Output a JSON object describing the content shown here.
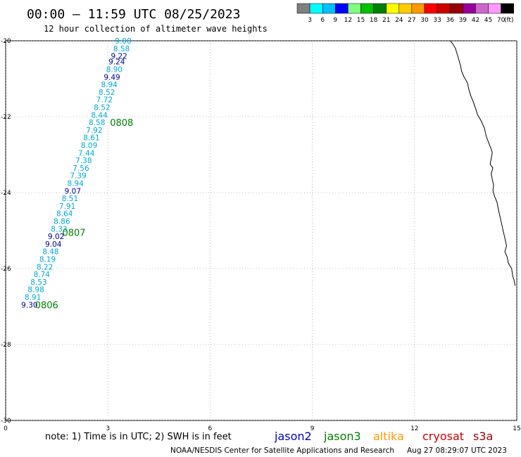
{
  "header": {
    "title": "00:00 – 11:59 UTC 08/25/2023",
    "subtitle": "12 hour collection of altimeter wave heights"
  },
  "legend": {
    "ticks": [
      "3",
      "6",
      "9",
      "12",
      "15",
      "18",
      "21",
      "24",
      "27",
      "30",
      "33",
      "36",
      "39",
      "42",
      "45",
      "70"
    ],
    "unit": "(ft)",
    "colors": [
      "#808080",
      "#00ffff",
      "#00bfff",
      "#0000ff",
      "#7fff7f",
      "#00c000",
      "#008000",
      "#ffff00",
      "#ffcc00",
      "#ff9900",
      "#ff0000",
      "#cc0000",
      "#990000",
      "#990099",
      "#cc66cc",
      "#ff99ff",
      "#000000"
    ]
  },
  "footer": {
    "note": "note: 1) Time is in UTC; 2) SWH is in feet",
    "credit": "NOAA/NESDIS Center for Satellite Applications and Research",
    "generated": "Aug 27 08:29:07 UTC 2023",
    "satellites": [
      {
        "name": "jason2",
        "color": "#0000cc"
      },
      {
        "name": "jason3",
        "color": "#008000"
      },
      {
        "name": "altika",
        "color": "#ff9900"
      },
      {
        "name": "cryosat",
        "color": "#cc0000"
      },
      {
        "name": "s3a",
        "color": "#990000"
      }
    ]
  },
  "chart_data": {
    "type": "scatter",
    "xlim": [
      0,
      15
    ],
    "ylim": [
      -30,
      -20
    ],
    "x_ticks": [
      "0",
      "3",
      "6",
      "9",
      "12",
      "15"
    ],
    "y_ticks": [
      "-20",
      "-22",
      "-24",
      "-26",
      "-28",
      "-30"
    ],
    "grid": true,
    "colors": {
      "light": "#00a8d8",
      "dark": "#00008b",
      "pass": "#008000"
    },
    "points": [
      {
        "x": 3.45,
        "y": -20.0,
        "value": "9.00",
        "shade": "light"
      },
      {
        "x": 3.4,
        "y": -20.2,
        "value": "8.58",
        "shade": "light"
      },
      {
        "x": 3.33,
        "y": -20.4,
        "value": "9.22",
        "shade": "dark"
      },
      {
        "x": 3.26,
        "y": -20.55,
        "value": "9.24",
        "shade": "dark"
      },
      {
        "x": 3.19,
        "y": -20.75,
        "value": "8.90",
        "shade": "light"
      },
      {
        "x": 3.12,
        "y": -20.95,
        "value": "9.49",
        "shade": "dark"
      },
      {
        "x": 3.04,
        "y": -21.15,
        "value": "8.94",
        "shade": "light"
      },
      {
        "x": 2.97,
        "y": -21.35,
        "value": "8.52",
        "shade": "light"
      },
      {
        "x": 2.9,
        "y": -21.55,
        "value": "7.72",
        "shade": "light"
      },
      {
        "x": 2.83,
        "y": -21.75,
        "value": "8.52",
        "shade": "light"
      },
      {
        "x": 2.75,
        "y": -21.95,
        "value": "8.44",
        "shade": "light"
      },
      {
        "x": 2.68,
        "y": -22.15,
        "value": "8.58",
        "shade": "light"
      },
      {
        "x": 2.6,
        "y": -22.35,
        "value": "7.92",
        "shade": "light"
      },
      {
        "x": 2.52,
        "y": -22.55,
        "value": "8.61",
        "shade": "light"
      },
      {
        "x": 2.45,
        "y": -22.75,
        "value": "8.09",
        "shade": "light"
      },
      {
        "x": 2.37,
        "y": -22.95,
        "value": "7.44",
        "shade": "light"
      },
      {
        "x": 2.29,
        "y": -23.15,
        "value": "7.38",
        "shade": "light"
      },
      {
        "x": 2.21,
        "y": -23.35,
        "value": "7.56",
        "shade": "light"
      },
      {
        "x": 2.13,
        "y": -23.55,
        "value": "7.39",
        "shade": "light"
      },
      {
        "x": 2.05,
        "y": -23.75,
        "value": "8.94",
        "shade": "light"
      },
      {
        "x": 1.97,
        "y": -23.95,
        "value": "9.07",
        "shade": "dark"
      },
      {
        "x": 1.89,
        "y": -24.15,
        "value": "8.51",
        "shade": "light"
      },
      {
        "x": 1.81,
        "y": -24.35,
        "value": "7.91",
        "shade": "light"
      },
      {
        "x": 1.73,
        "y": -24.55,
        "value": "8.64",
        "shade": "light"
      },
      {
        "x": 1.65,
        "y": -24.75,
        "value": "8.86",
        "shade": "light"
      },
      {
        "x": 1.57,
        "y": -24.95,
        "value": "8.33",
        "shade": "light"
      },
      {
        "x": 1.48,
        "y": -25.15,
        "value": "9.02",
        "shade": "dark"
      },
      {
        "x": 1.4,
        "y": -25.35,
        "value": "9.04",
        "shade": "dark"
      },
      {
        "x": 1.32,
        "y": -25.55,
        "value": "8.48",
        "shade": "light"
      },
      {
        "x": 1.23,
        "y": -25.75,
        "value": "8.19",
        "shade": "light"
      },
      {
        "x": 1.15,
        "y": -25.95,
        "value": "8.22",
        "shade": "light"
      },
      {
        "x": 1.06,
        "y": -26.15,
        "value": "8.74",
        "shade": "light"
      },
      {
        "x": 0.97,
        "y": -26.35,
        "value": "8.53",
        "shade": "light"
      },
      {
        "x": 0.89,
        "y": -26.55,
        "value": "8.98",
        "shade": "light"
      },
      {
        "x": 0.8,
        "y": -26.75,
        "value": "8.91",
        "shade": "light"
      },
      {
        "x": 0.7,
        "y": -26.95,
        "value": "9.30",
        "shade": "dark"
      }
    ],
    "pass_labels": [
      {
        "text": "0808",
        "x": 3.0,
        "y": -22.15
      },
      {
        "text": "0807",
        "x": 1.6,
        "y": -25.05
      },
      {
        "text": "0806",
        "x": 0.8,
        "y": -26.95
      }
    ],
    "coastline": [
      [
        13.05,
        -20.0
      ],
      [
        13.12,
        -20.08
      ],
      [
        13.2,
        -20.2
      ],
      [
        13.25,
        -20.35
      ],
      [
        13.3,
        -20.5
      ],
      [
        13.35,
        -20.65
      ],
      [
        13.38,
        -20.8
      ],
      [
        13.45,
        -20.95
      ],
      [
        13.55,
        -21.1
      ],
      [
        13.6,
        -21.3
      ],
      [
        13.65,
        -21.45
      ],
      [
        13.72,
        -21.6
      ],
      [
        13.8,
        -21.8
      ],
      [
        13.85,
        -21.95
      ],
      [
        13.95,
        -22.1
      ],
      [
        14.05,
        -22.3
      ],
      [
        14.1,
        -22.5
      ],
      [
        14.18,
        -22.7
      ],
      [
        14.25,
        -22.85
      ],
      [
        14.28,
        -22.95
      ],
      [
        14.25,
        -23.1
      ],
      [
        14.22,
        -23.25
      ],
      [
        14.3,
        -23.35
      ],
      [
        14.25,
        -23.5
      ],
      [
        14.28,
        -23.65
      ],
      [
        14.32,
        -23.8
      ],
      [
        14.3,
        -23.95
      ],
      [
        14.35,
        -24.1
      ],
      [
        14.42,
        -24.25
      ],
      [
        14.45,
        -24.4
      ],
      [
        14.5,
        -24.6
      ],
      [
        14.55,
        -24.8
      ],
      [
        14.6,
        -25.0
      ],
      [
        14.65,
        -25.2
      ],
      [
        14.7,
        -25.4
      ],
      [
        14.65,
        -25.55
      ],
      [
        14.72,
        -25.7
      ],
      [
        14.75,
        -25.85
      ],
      [
        14.85,
        -26.0
      ],
      [
        14.88,
        -26.2
      ],
      [
        14.92,
        -26.3
      ],
      [
        14.95,
        -26.45
      ]
    ]
  }
}
